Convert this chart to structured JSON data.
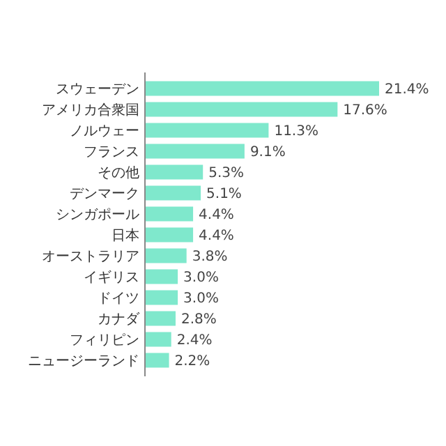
{
  "chart_data": {
    "type": "bar",
    "orientation": "horizontal",
    "categories": [
      "スウェーデン",
      "アメリカ合衆国",
      "ノルウェー",
      "フランス",
      "その他",
      "デンマーク",
      "シンガポール",
      "日本",
      "オーストラリア",
      "イギリス",
      "ドイツ",
      "カナダ",
      "フィリピン",
      "ニュージーランド"
    ],
    "values": [
      21.4,
      17.6,
      11.3,
      9.1,
      5.3,
      5.1,
      4.4,
      4.4,
      3.8,
      3.0,
      3.0,
      2.8,
      2.4,
      2.2
    ],
    "value_labels": [
      "21.4%",
      "17.6%",
      "11.3%",
      "9.1%",
      "5.3%",
      "5.1%",
      "4.4%",
      "4.4%",
      "3.8%",
      "3.0%",
      "3.0%",
      "2.8%",
      "2.4%",
      "2.2%"
    ],
    "color": "#7fe8cc"
  }
}
